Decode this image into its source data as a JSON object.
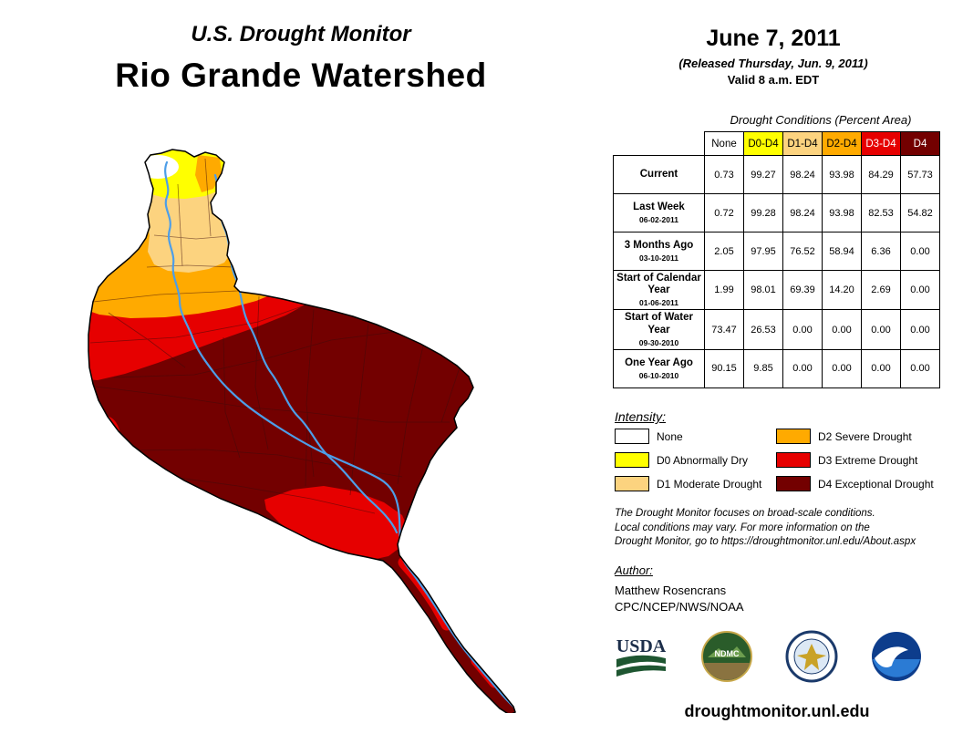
{
  "header": {
    "title": "U.S. Drought Monitor",
    "subtitle": "Rio Grande Watershed",
    "date": "June 7, 2011",
    "released": "(Released Thursday, Jun. 9, 2011)",
    "valid": "Valid 8 a.m. EDT"
  },
  "colors": {
    "none": "#FFFFFF",
    "d0": "#FFFF00",
    "d1": "#FCD37F",
    "d2": "#FFAA00",
    "d3": "#E60000",
    "d4": "#730000",
    "river": "#4D9EE8"
  },
  "table": {
    "title": "Drought Conditions (Percent Area)",
    "columns": [
      {
        "label": "None",
        "color_key": "none",
        "fg": "#000000"
      },
      {
        "label": "D0-D4",
        "color_key": "d0",
        "fg": "#000000"
      },
      {
        "label": "D1-D4",
        "color_key": "d1",
        "fg": "#000000"
      },
      {
        "label": "D2-D4",
        "color_key": "d2",
        "fg": "#000000"
      },
      {
        "label": "D3-D4",
        "color_key": "d3",
        "fg": "#FFFFFF"
      },
      {
        "label": "D4",
        "color_key": "d4",
        "fg": "#FFFFFF"
      }
    ],
    "rows": [
      {
        "label": "Current",
        "date": "",
        "values": [
          "0.73",
          "99.27",
          "98.24",
          "93.98",
          "84.29",
          "57.73"
        ]
      },
      {
        "label": "Last Week",
        "date": "06-02-2011",
        "values": [
          "0.72",
          "99.28",
          "98.24",
          "93.98",
          "82.53",
          "54.82"
        ]
      },
      {
        "label": "3 Months Ago",
        "date": "03-10-2011",
        "values": [
          "2.05",
          "97.95",
          "76.52",
          "58.94",
          "6.36",
          "0.00"
        ]
      },
      {
        "label": "Start of Calendar Year",
        "date": "01-06-2011",
        "values": [
          "1.99",
          "98.01",
          "69.39",
          "14.20",
          "2.69",
          "0.00"
        ]
      },
      {
        "label": "Start of Water Year",
        "date": "09-30-2010",
        "values": [
          "73.47",
          "26.53",
          "0.00",
          "0.00",
          "0.00",
          "0.00"
        ]
      },
      {
        "label": "One Year Ago",
        "date": "06-10-2010",
        "values": [
          "90.15",
          "9.85",
          "0.00",
          "0.00",
          "0.00",
          "0.00"
        ]
      }
    ]
  },
  "legend": {
    "title": "Intensity:",
    "items": [
      {
        "label": "None",
        "color_key": "none"
      },
      {
        "label": "D0 Abnormally Dry",
        "color_key": "d0"
      },
      {
        "label": "D1 Moderate Drought",
        "color_key": "d1"
      },
      {
        "label": "D2 Severe Drought",
        "color_key": "d2"
      },
      {
        "label": "D3 Extreme Drought",
        "color_key": "d3"
      },
      {
        "label": "D4 Exceptional Drought",
        "color_key": "d4"
      }
    ]
  },
  "disclaimer_lines": [
    "The Drought Monitor focuses on broad-scale conditions.",
    "Local conditions may vary. For more information on the",
    "Drought Monitor, go to https://droughtmonitor.unl.edu/About.aspx"
  ],
  "author": {
    "heading": "Author:",
    "name": "Matthew Rosencrans",
    "org": "CPC/NCEP/NWS/NOAA"
  },
  "logos": {
    "names": [
      "usda-logo",
      "ndmc-logo",
      "doc-seal-logo",
      "noaa-logo"
    ],
    "usda_text": "USDA",
    "ndmc_text": "NDMC",
    "noaa_text": "NOAA"
  },
  "footer": {
    "url": "droughtmonitor.unl.edu"
  }
}
